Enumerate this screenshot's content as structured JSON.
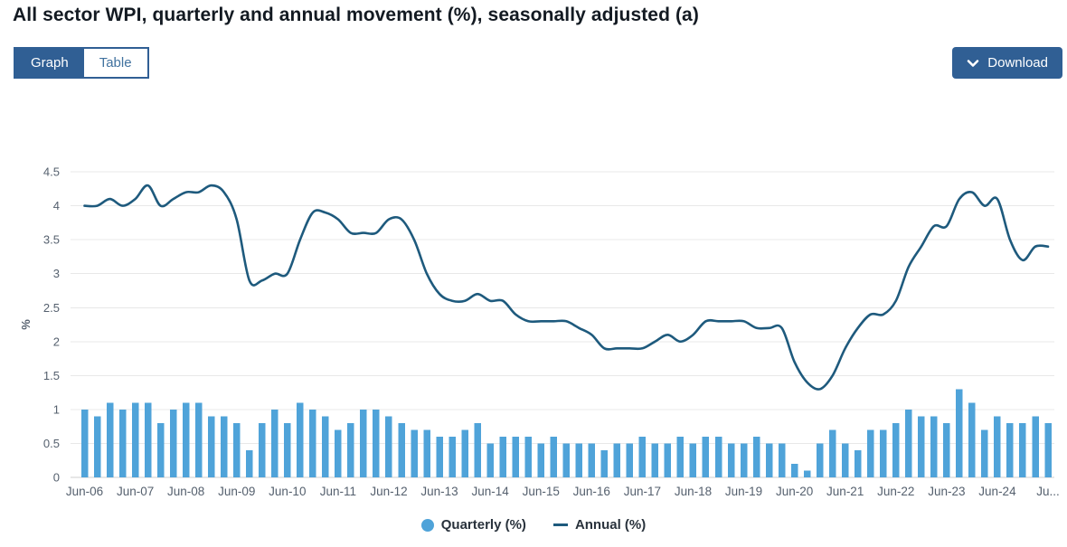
{
  "header": {
    "title": "All sector WPI, quarterly and annual movement (%), seasonally adjusted (a)"
  },
  "toolbar": {
    "graph_label": "Graph",
    "table_label": "Table",
    "download_label": "Download"
  },
  "colors": {
    "accent_navy": "#305F94",
    "bar_blue": "#4FA3D9",
    "line_blue": "#1E5A7D",
    "grid": "#E8E8E8",
    "zero_line": "#CFCFCF",
    "axis_text": "#55606E",
    "title_text": "#131A22",
    "legend_text": "#29323C",
    "table_tab_text": "#41729F"
  },
  "chart_data": {
    "type": "bar",
    "subtype": "column-plus-spline-line",
    "title": "All sector WPI, quarterly and annual movement (%), seasonally adjusted (a)",
    "xlabel": "",
    "ylabel": "%",
    "ylim": [
      0,
      4.5
    ],
    "yticks": [
      0,
      0.5,
      1,
      1.5,
      2,
      2.5,
      3,
      3.5,
      4,
      4.5
    ],
    "grid": "horizontal-only",
    "legend_position": "bottom-center",
    "xtick_labels": [
      "Jun-06",
      "Jun-07",
      "Jun-08",
      "Jun-09",
      "Jun-10",
      "Jun-11",
      "Jun-12",
      "Jun-13",
      "Jun-14",
      "Jun-15",
      "Jun-16",
      "Jun-17",
      "Jun-18",
      "Jun-19",
      "Jun-20",
      "Jun-21",
      "Jun-22",
      "Jun-23",
      "Jun-24",
      "Ju..."
    ],
    "xtick_every_n_categories": 4,
    "categories": [
      "Jun-06",
      "Sep-06",
      "Dec-06",
      "Mar-07",
      "Jun-07",
      "Sep-07",
      "Dec-07",
      "Mar-08",
      "Jun-08",
      "Sep-08",
      "Dec-08",
      "Mar-09",
      "Jun-09",
      "Sep-09",
      "Dec-09",
      "Mar-10",
      "Jun-10",
      "Sep-10",
      "Dec-10",
      "Mar-11",
      "Jun-11",
      "Sep-11",
      "Dec-11",
      "Mar-12",
      "Jun-12",
      "Sep-12",
      "Dec-12",
      "Mar-13",
      "Jun-13",
      "Sep-13",
      "Dec-13",
      "Mar-14",
      "Jun-14",
      "Sep-14",
      "Dec-14",
      "Mar-15",
      "Jun-15",
      "Sep-15",
      "Dec-15",
      "Mar-16",
      "Jun-16",
      "Sep-16",
      "Dec-16",
      "Mar-17",
      "Jun-17",
      "Sep-17",
      "Dec-17",
      "Mar-18",
      "Jun-18",
      "Sep-18",
      "Dec-18",
      "Mar-19",
      "Jun-19",
      "Sep-19",
      "Dec-19",
      "Mar-20",
      "Jun-20",
      "Sep-20",
      "Dec-20",
      "Mar-21",
      "Jun-21",
      "Sep-21",
      "Dec-21",
      "Mar-22",
      "Jun-22",
      "Sep-22",
      "Dec-22",
      "Mar-23",
      "Jun-23",
      "Sep-23",
      "Dec-23",
      "Mar-24",
      "Jun-24",
      "Sep-24",
      "Dec-24",
      "Mar-25",
      "Jun-25"
    ],
    "series": [
      {
        "name": "Quarterly (%)",
        "type": "column",
        "color": "#4FA3D9",
        "values": [
          1.0,
          0.9,
          1.1,
          1.0,
          1.1,
          1.1,
          0.8,
          1.0,
          1.1,
          1.1,
          0.9,
          0.9,
          0.8,
          0.4,
          0.8,
          1.0,
          0.8,
          1.1,
          1.0,
          0.9,
          0.7,
          0.8,
          1.0,
          1.0,
          0.9,
          0.8,
          0.7,
          0.7,
          0.6,
          0.6,
          0.7,
          0.8,
          0.5,
          0.6,
          0.6,
          0.6,
          0.5,
          0.6,
          0.5,
          0.5,
          0.5,
          0.4,
          0.5,
          0.5,
          0.6,
          0.5,
          0.5,
          0.6,
          0.5,
          0.6,
          0.6,
          0.5,
          0.5,
          0.6,
          0.5,
          0.5,
          0.2,
          0.1,
          0.5,
          0.7,
          0.5,
          0.4,
          0.7,
          0.7,
          0.8,
          1.0,
          0.9,
          0.9,
          0.8,
          1.3,
          1.1,
          0.7,
          0.9,
          0.8,
          0.8,
          0.9,
          0.8
        ]
      },
      {
        "name": "Annual (%)",
        "type": "spline",
        "color": "#1E5A7D",
        "values": [
          4.0,
          4.0,
          4.1,
          4.0,
          4.1,
          4.3,
          4.0,
          4.1,
          4.2,
          4.2,
          4.3,
          4.2,
          3.8,
          2.9,
          2.9,
          3.0,
          3.0,
          3.5,
          3.9,
          3.9,
          3.8,
          3.6,
          3.6,
          3.6,
          3.8,
          3.8,
          3.5,
          3.0,
          2.7,
          2.6,
          2.6,
          2.7,
          2.6,
          2.6,
          2.4,
          2.3,
          2.3,
          2.3,
          2.3,
          2.2,
          2.1,
          1.9,
          1.9,
          1.9,
          1.9,
          2.0,
          2.1,
          2.0,
          2.1,
          2.3,
          2.3,
          2.3,
          2.3,
          2.2,
          2.2,
          2.2,
          1.7,
          1.4,
          1.3,
          1.5,
          1.9,
          2.2,
          2.4,
          2.4,
          2.6,
          3.1,
          3.4,
          3.7,
          3.7,
          4.1,
          4.2,
          4.0,
          4.1,
          3.5,
          3.2,
          3.4,
          3.4
        ]
      }
    ]
  }
}
